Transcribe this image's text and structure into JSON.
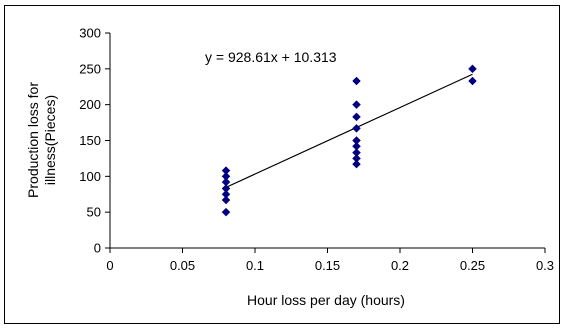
{
  "chart_data": {
    "type": "scatter",
    "xlabel": "Hour loss per day (hours)",
    "ylabel_lines": [
      "Production loss for",
      "illness(Pieces)"
    ],
    "xlim": [
      0,
      0.3
    ],
    "ylim": [
      0,
      300
    ],
    "x_ticks": [
      0,
      0.05,
      0.1,
      0.15,
      0.2,
      0.25,
      0.3
    ],
    "x_tick_labels": [
      "0",
      "0.05",
      "0.1",
      "0.15",
      "0.2",
      "0.25",
      "0.3"
    ],
    "y_ticks": [
      0,
      50,
      100,
      150,
      200,
      250,
      300
    ],
    "y_tick_labels": [
      "0",
      "50",
      "100",
      "150",
      "200",
      "250",
      "300"
    ],
    "grid": false,
    "marker": "diamond",
    "marker_color": "#000080",
    "points": [
      {
        "x": 0.08,
        "y": 50
      },
      {
        "x": 0.08,
        "y": 67
      },
      {
        "x": 0.08,
        "y": 75
      },
      {
        "x": 0.08,
        "y": 83
      },
      {
        "x": 0.08,
        "y": 92
      },
      {
        "x": 0.08,
        "y": 100
      },
      {
        "x": 0.08,
        "y": 108
      },
      {
        "x": 0.17,
        "y": 117
      },
      {
        "x": 0.17,
        "y": 125
      },
      {
        "x": 0.17,
        "y": 133
      },
      {
        "x": 0.17,
        "y": 142
      },
      {
        "x": 0.17,
        "y": 150
      },
      {
        "x": 0.17,
        "y": 167
      },
      {
        "x": 0.17,
        "y": 183
      },
      {
        "x": 0.17,
        "y": 200
      },
      {
        "x": 0.17,
        "y": 233
      },
      {
        "x": 0.25,
        "y": 233
      },
      {
        "x": 0.25,
        "y": 250
      }
    ],
    "trendline": {
      "equation": "y = 928.61x + 10.313",
      "slope": 928.61,
      "intercept": 10.313,
      "x_start": 0.08,
      "x_end": 0.25,
      "color": "#000000"
    }
  }
}
